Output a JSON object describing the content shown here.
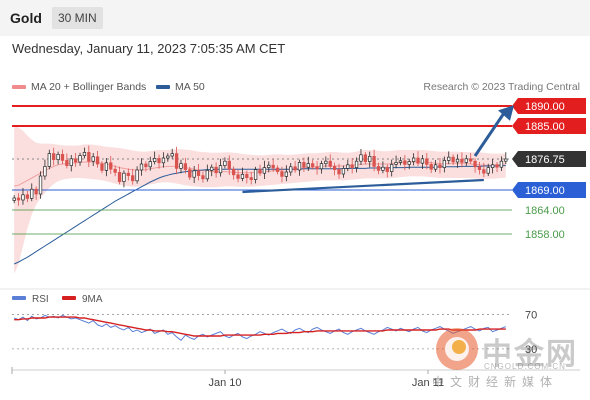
{
  "header": {
    "symbol": "Gold",
    "timeframe": "30 MIN"
  },
  "datetime": "Wednesday, January 11, 2023 7:05:35 AM CET",
  "legend": {
    "bollinger": {
      "label": "MA 20 + Bollinger Bands",
      "color": "#f08b8b"
    },
    "ma50": {
      "label": "MA 50",
      "color": "#2c5d9a"
    }
  },
  "credit": "Research © 2023 Trading Central",
  "colors": {
    "up": "#2a2a2a",
    "down": "#d9534f",
    "band": "#f9d3d3",
    "ma20": "#f0a0a0",
    "ma50": "#2c5d9a",
    "resistance": "#e31e1e",
    "support_blue": "#2a5fd6",
    "support_green": "#4a9a4a",
    "rsi": "#5b7fd6",
    "rsi_ma": "#d62020",
    "current": "#333333"
  },
  "chart_data": [
    {
      "type": "candlestick",
      "x_labels": [
        "Jan 10",
        "Jan 11"
      ],
      "ylim": [
        1846,
        1892
      ],
      "levels": [
        {
          "value": 1890.0,
          "label": "1890.00",
          "kind": "resistance"
        },
        {
          "value": 1885.0,
          "label": "1885.00",
          "kind": "resistance"
        },
        {
          "value": 1876.75,
          "label": "1876.75",
          "kind": "current"
        },
        {
          "value": 1869.0,
          "label": "1869.00",
          "kind": "pivot"
        },
        {
          "value": 1864.0,
          "label": "1864.00",
          "kind": "support"
        },
        {
          "value": 1858.0,
          "label": "1858.00",
          "kind": "support"
        }
      ],
      "closes": [
        1867.0,
        1866.5,
        1867.8,
        1866.9,
        1869.2,
        1868.0,
        1872.5,
        1874.9,
        1878.1,
        1876.6,
        1877.9,
        1876.4,
        1875.1,
        1876.8,
        1876.0,
        1877.6,
        1878.4,
        1876.2,
        1877.3,
        1875.5,
        1873.9,
        1875.8,
        1874.2,
        1873.4,
        1871.1,
        1873.2,
        1872.6,
        1871.3,
        1874.0,
        1875.5,
        1874.8,
        1876.1,
        1876.9,
        1875.8,
        1877.0,
        1877.5,
        1878.1,
        1874.4,
        1875.6,
        1874.1,
        1872.2,
        1873.8,
        1872.6,
        1871.8,
        1873.9,
        1874.7,
        1873.3,
        1875.1,
        1876.2,
        1874.2,
        1872.8,
        1871.9,
        1872.9,
        1872.1,
        1871.6,
        1874.1,
        1873.2,
        1874.6,
        1875.2,
        1874.5,
        1873.6,
        1872.4,
        1873.5,
        1874.8,
        1874.0,
        1875.9,
        1874.7,
        1875.6,
        1874.8,
        1874.3,
        1875.6,
        1876.2,
        1874.9,
        1874.1,
        1873.0,
        1874.4,
        1875.3,
        1874.6,
        1876.2,
        1877.8,
        1876.1,
        1877.4,
        1874.9,
        1873.9,
        1874.7,
        1873.6,
        1875.4,
        1875.9,
        1876.3,
        1875.4,
        1876.1,
        1877.0,
        1875.7,
        1876.8,
        1875.4,
        1874.2,
        1875.3,
        1874.6,
        1876.4,
        1877.2,
        1876.0,
        1876.7,
        1875.9,
        1876.8,
        1876.2,
        1874.8,
        1874.1,
        1873.2,
        1874.6,
        1875.3,
        1874.7,
        1876.2,
        1876.75
      ],
      "ma20": [
        1870.0,
        1870.2,
        1870.8,
        1871.4,
        1872.0,
        1872.6,
        1873.2,
        1873.8,
        1874.4,
        1874.9,
        1875.3,
        1875.5,
        1875.6,
        1875.7,
        1875.8,
        1875.9,
        1876.0,
        1876.0,
        1876.0,
        1875.9,
        1875.7,
        1875.5,
        1875.2,
        1874.9,
        1874.6,
        1874.4,
        1874.2,
        1874.1,
        1874.0,
        1874.0,
        1874.1,
        1874.3,
        1874.5,
        1874.7,
        1874.8,
        1874.9,
        1874.9,
        1874.9,
        1874.8,
        1874.6,
        1874.4,
        1874.2,
        1874.0,
        1873.8,
        1873.7,
        1873.6,
        1873.6,
        1873.6,
        1873.6,
        1873.5,
        1873.4,
        1873.3,
        1873.3,
        1873.3,
        1873.3,
        1873.4,
        1873.5,
        1873.6,
        1873.7,
        1873.8,
        1873.9,
        1874.0,
        1874.1,
        1874.2,
        1874.3,
        1874.4,
        1874.5,
        1874.6,
        1874.7,
        1874.8,
        1874.9,
        1875.0,
        1875.0,
        1875.0,
        1875.0,
        1875.0,
        1875.1,
        1875.2,
        1875.3,
        1875.4,
        1875.5,
        1875.5,
        1875.5,
        1875.5,
        1875.5,
        1875.5,
        1875.6,
        1875.7,
        1875.8,
        1875.9,
        1876.0,
        1876.0,
        1876.0,
        1876.0,
        1875.9,
        1875.8,
        1875.7,
        1875.6,
        1875.6,
        1875.6,
        1875.6,
        1875.6,
        1875.6,
        1875.6,
        1875.5,
        1875.4,
        1875.3,
        1875.2,
        1875.2,
        1875.2,
        1875.3,
        1875.4,
        1875.5
      ],
      "band_upper": [
        1885.0,
        1884.6,
        1883.8,
        1882.6,
        1881.6,
        1880.8,
        1880.6,
        1880.6,
        1880.6,
        1880.5,
        1880.3,
        1880.2,
        1880.1,
        1880.1,
        1880.1,
        1880.2,
        1880.4,
        1880.4,
        1880.3,
        1880.2,
        1880.0,
        1879.8,
        1879.7,
        1879.6,
        1879.5,
        1879.3,
        1879.1,
        1878.9,
        1878.7,
        1878.6,
        1878.6,
        1878.7,
        1878.9,
        1879.0,
        1879.0,
        1879.0,
        1879.1,
        1879.2,
        1879.2,
        1879.1,
        1879.0,
        1878.8,
        1878.6,
        1878.5,
        1878.4,
        1878.3,
        1878.3,
        1878.3,
        1878.4,
        1878.4,
        1878.3,
        1878.2,
        1878.0,
        1877.9,
        1877.8,
        1877.7,
        1877.7,
        1877.7,
        1877.8,
        1877.9,
        1877.9,
        1877.9,
        1877.8,
        1877.8,
        1877.9,
        1878.0,
        1878.1,
        1878.2,
        1878.2,
        1878.2,
        1878.3,
        1878.4,
        1878.5,
        1878.5,
        1878.4,
        1878.3,
        1878.3,
        1878.4,
        1878.6,
        1878.9,
        1879.0,
        1879.0,
        1878.9,
        1878.8,
        1878.7,
        1878.7,
        1878.8,
        1878.9,
        1879.0,
        1879.0,
        1879.0,
        1879.0,
        1879.0,
        1879.0,
        1878.9,
        1878.8,
        1878.7,
        1878.6,
        1878.6,
        1878.6,
        1878.6,
        1878.6,
        1878.5,
        1878.5,
        1878.4,
        1878.4,
        1878.4,
        1878.3,
        1878.2,
        1878.1,
        1878.1,
        1878.1,
        1878.1
      ],
      "band_lower": [
        1848.0,
        1850.6,
        1855.0,
        1859.4,
        1862.9,
        1865.3,
        1867.0,
        1868.3,
        1869.5,
        1870.5,
        1871.2,
        1871.6,
        1871.8,
        1871.9,
        1872.0,
        1872.0,
        1871.9,
        1871.8,
        1871.7,
        1871.6,
        1871.4,
        1871.2,
        1870.9,
        1870.6,
        1870.3,
        1870.1,
        1869.9,
        1869.8,
        1869.8,
        1869.9,
        1870.1,
        1870.4,
        1870.6,
        1870.8,
        1870.9,
        1870.9,
        1870.8,
        1870.6,
        1870.4,
        1870.2,
        1870.0,
        1869.9,
        1869.8,
        1869.7,
        1869.7,
        1869.7,
        1869.7,
        1869.8,
        1869.9,
        1869.9,
        1869.9,
        1869.8,
        1869.8,
        1869.8,
        1869.8,
        1869.9,
        1870.0,
        1870.1,
        1870.2,
        1870.3,
        1870.4,
        1870.5,
        1870.6,
        1870.7,
        1870.8,
        1870.9,
        1871.0,
        1871.1,
        1871.2,
        1871.3,
        1871.4,
        1871.4,
        1871.4,
        1871.4,
        1871.4,
        1871.4,
        1871.5,
        1871.6,
        1871.7,
        1871.8,
        1871.9,
        1871.9,
        1871.9,
        1871.9,
        1871.9,
        1871.9,
        1872.0,
        1872.1,
        1872.2,
        1872.3,
        1872.4,
        1872.4,
        1872.4,
        1872.4,
        1872.3,
        1872.2,
        1872.1,
        1872.0,
        1872.0,
        1872.0,
        1872.0,
        1872.0,
        1872.0,
        1872.0,
        1872.0,
        1871.9,
        1871.8,
        1871.8,
        1871.8,
        1871.8,
        1871.9,
        1872.0,
        1872.1
      ],
      "ma50": [
        1850.5,
        1851.0,
        1851.6,
        1852.2,
        1852.9,
        1853.6,
        1854.3,
        1855.0,
        1855.7,
        1856.4,
        1857.1,
        1857.8,
        1858.5,
        1859.2,
        1859.9,
        1860.6,
        1861.3,
        1862.0,
        1862.7,
        1863.4,
        1864.1,
        1864.8,
        1865.5,
        1866.2,
        1866.8,
        1867.4,
        1868.0,
        1868.6,
        1869.2,
        1869.8,
        1870.4,
        1871.0,
        1871.5,
        1872.0,
        1872.4,
        1872.7,
        1873.0,
        1873.2,
        1873.4,
        1873.6,
        1873.7,
        1873.8,
        1873.9,
        1874.0,
        1874.1,
        1874.1,
        1874.2,
        1874.2,
        1874.2,
        1874.2,
        1874.2,
        1874.2,
        1874.2,
        1874.2,
        1874.2,
        1874.2,
        1874.2,
        1874.2,
        1874.2,
        1874.2,
        1874.2,
        1874.2,
        1874.2,
        1874.2,
        1874.2,
        1874.2,
        1874.3,
        1874.3,
        1874.3,
        1874.3,
        1874.3,
        1874.3,
        1874.3,
        1874.3,
        1874.3,
        1874.3,
        1874.4,
        1874.4,
        1874.4,
        1874.4,
        1874.4,
        1874.5,
        1874.5,
        1874.5,
        1874.5,
        1874.5,
        1874.6,
        1874.6,
        1874.6,
        1874.6,
        1874.7,
        1874.7,
        1874.7,
        1874.7,
        1874.7,
        1874.7,
        1874.7,
        1874.8,
        1874.8,
        1874.8,
        1874.8,
        1874.8,
        1874.9,
        1874.9,
        1874.9,
        1874.9,
        1874.9,
        1875.0,
        1875.0,
        1875.0,
        1875.0,
        1875.1,
        1875.1
      ]
    },
    {
      "type": "line",
      "name": "RSI",
      "levels": [
        {
          "value": 70,
          "label": "70"
        },
        {
          "value": 30,
          "label": "30"
        }
      ],
      "ylim": [
        10,
        80
      ],
      "legend": [
        {
          "label": "RSI",
          "color": "#5b7fd6"
        },
        {
          "label": "9MA",
          "color": "#d62020"
        }
      ],
      "rsi": [
        66,
        64,
        67,
        63,
        68,
        65,
        66,
        69,
        67,
        68,
        66,
        69,
        67,
        65,
        66,
        64,
        62,
        60,
        63,
        58,
        56,
        59,
        55,
        57,
        54,
        52,
        55,
        50,
        52,
        49,
        51,
        53,
        48,
        50,
        52,
        47,
        49,
        44,
        40,
        46,
        43,
        41,
        45,
        47,
        44,
        46,
        48,
        50,
        45,
        43,
        46,
        48,
        44,
        42,
        45,
        47,
        50,
        48,
        46,
        49,
        51,
        53,
        50,
        48,
        52,
        54,
        51,
        49,
        53,
        55,
        52,
        50,
        48,
        51,
        53,
        49,
        47,
        50,
        52,
        54,
        51,
        49,
        47,
        50,
        52,
        55,
        53,
        51,
        54,
        52,
        50,
        53,
        55,
        51,
        49,
        52,
        54,
        56,
        53,
        51,
        48,
        50,
        52,
        54,
        56,
        53,
        51,
        54,
        55,
        50,
        52,
        54,
        56
      ],
      "rsi_ma": [
        64,
        64,
        65,
        65,
        66,
        66,
        66,
        66,
        67,
        67,
        67,
        67,
        67,
        67,
        67,
        66,
        66,
        65,
        64,
        63,
        62,
        61,
        60,
        59,
        58,
        57,
        56,
        55,
        54,
        53,
        52,
        52,
        51,
        51,
        51,
        50,
        50,
        49,
        48,
        47,
        46,
        45,
        45,
        45,
        45,
        45,
        45,
        45,
        46,
        46,
        46,
        46,
        46,
        46,
        46,
        46,
        46,
        47,
        47,
        47,
        48,
        48,
        48,
        49,
        49,
        49,
        50,
        50,
        50,
        51,
        51,
        51,
        51,
        51,
        51,
        51,
        51,
        51,
        51,
        51,
        51,
        51,
        51,
        51,
        51,
        52,
        52,
        52,
        52,
        52,
        52,
        52,
        52,
        52,
        52,
        52,
        52,
        53,
        53,
        53,
        52,
        52,
        52,
        52,
        52,
        52,
        53,
        53,
        53,
        53,
        53,
        53,
        53
      ]
    }
  ],
  "watermark": {
    "cn": "中金网",
    "en": "CNGOLD.COM.CN",
    "tag": "中文财经新媒体"
  }
}
